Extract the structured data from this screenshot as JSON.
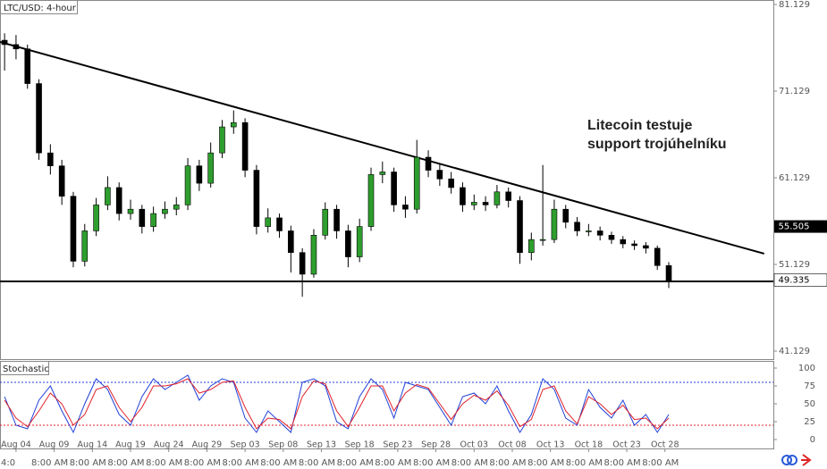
{
  "chart_data": [
    {
      "type": "candlestick",
      "title": "LTC/USD: 4-hour",
      "annotation": [
        "Litecoin testuje",
        "support trojúhelníku"
      ],
      "x": [
        -1.5,
        0,
        1.5,
        3,
        4.5,
        6,
        7.5,
        9,
        10.5,
        12,
        13.5,
        15,
        16.5,
        18,
        19.5,
        21,
        22.5,
        24,
        25.5,
        27,
        28.5,
        30,
        31.5,
        33,
        34.5,
        36,
        37.5,
        39,
        40.5,
        42,
        43.5,
        45,
        46.5,
        48,
        49.5,
        51,
        52.5,
        54,
        55.5,
        57,
        58.5,
        60,
        61.5,
        63,
        64.5,
        66,
        67.5,
        69,
        70.5,
        72,
        73.5,
        75,
        76.5,
        78,
        79.5,
        81,
        82.5,
        84,
        85.5
      ],
      "open": [
        77,
        76.5,
        76,
        72,
        64,
        62.5,
        59,
        51.5,
        55,
        58,
        60,
        57,
        57.5,
        55.5,
        57,
        57.5,
        58,
        62.5,
        60.5,
        64,
        67,
        67.5,
        62,
        55.5,
        56.5,
        55,
        52.5,
        50,
        54.5,
        57.5,
        55,
        52,
        55.5,
        61.5,
        61.8,
        58,
        57.5,
        63.5,
        62,
        61,
        60,
        58,
        58.3,
        58,
        59.5,
        58.5,
        52.5,
        54,
        54,
        57.5,
        56,
        55,
        55,
        54.5,
        54,
        53.5,
        53.3,
        53,
        51
      ],
      "high": [
        77.8,
        77.6,
        76.5,
        72.5,
        65,
        63.2,
        59.5,
        55.8,
        58.8,
        61.3,
        60.6,
        58.6,
        58,
        57.8,
        58.4,
        58.9,
        63.4,
        63.2,
        65.2,
        67.8,
        68.9,
        68,
        62.6,
        57.6,
        57,
        55.6,
        53,
        55.2,
        58.3,
        58,
        55.7,
        56.4,
        62.3,
        63,
        62.3,
        59,
        65.5,
        64.3,
        62.8,
        61.8,
        60.6,
        59.2,
        59,
        60.3,
        60,
        59,
        54.8,
        62.6,
        58.6,
        58,
        56.6,
        55.8,
        55.5,
        54.9,
        54.4,
        53.9,
        53.7,
        53.3,
        51.4
      ],
      "low": [
        73.5,
        74.8,
        71.4,
        63.2,
        61.5,
        58,
        50.8,
        50.9,
        54.4,
        57.4,
        56.2,
        56.3,
        54.7,
        54.9,
        56.4,
        56.8,
        57.4,
        59.6,
        60,
        63.4,
        66.2,
        61.2,
        54.6,
        54.8,
        54.2,
        50.2,
        47.4,
        49.6,
        54,
        54.1,
        50.8,
        51.4,
        55,
        60.5,
        57.2,
        56.5,
        57,
        61.2,
        60.2,
        59.3,
        57.2,
        57.4,
        57.3,
        57.6,
        57.7,
        51.2,
        51.6,
        53.3,
        53.6,
        55.3,
        54.4,
        54.4,
        53.9,
        53.5,
        53,
        52.8,
        52.4,
        50.5,
        48.4
      ],
      "close": [
        76.5,
        76,
        72,
        64,
        62.5,
        59,
        51.5,
        55,
        58,
        60,
        57,
        57.5,
        55.5,
        57,
        57.5,
        58,
        62.5,
        60.5,
        64,
        67,
        67.5,
        62,
        55.5,
        56.5,
        55,
        52.5,
        50,
        54.5,
        57.5,
        55,
        52,
        55.5,
        61.5,
        61.8,
        58,
        57.5,
        63.5,
        62,
        61,
        60,
        58,
        58.3,
        58,
        59.5,
        58.5,
        52.5,
        54,
        54,
        57.5,
        56,
        55,
        55,
        54.5,
        54,
        53.5,
        53.3,
        53,
        51,
        49.3
      ],
      "up_color": "#2e9e2e",
      "down_color": "#000000",
      "trendline": {
        "x": [
          -2.1,
          98
        ],
        "y": [
          76.8,
          52.37
        ]
      },
      "support_level": 49.17,
      "price_tags": [
        55.505,
        49.335
      ],
      "xlim": [
        -2.1,
        99.2
      ],
      "ylim": [
        40.098,
        81.645
      ],
      "yticks": [
        81.129,
        71.129,
        61.129,
        51.129,
        41.129
      ]
    },
    {
      "type": "line",
      "title": "Stochastic",
      "x": [
        -1.5,
        0,
        1.5,
        3,
        4.5,
        6,
        7.5,
        9,
        10.5,
        12,
        13.5,
        15,
        16.5,
        18,
        19.5,
        21,
        22.5,
        24,
        25.5,
        27,
        28.5,
        30,
        31.5,
        33,
        34.5,
        36,
        37.5,
        39,
        40.5,
        42,
        43.5,
        45,
        46.5,
        48,
        49.5,
        51,
        52.5,
        54,
        55.5,
        57,
        58.5,
        60,
        61.5,
        63,
        64.5,
        66,
        67.5,
        69,
        70.5,
        72,
        73.5,
        75,
        76.5,
        78,
        79.5,
        81,
        82.5,
        84,
        85.5
      ],
      "series": [
        {
          "color": "#1f3fd8",
          "values": [
            60,
            20,
            15,
            55,
            75,
            40,
            10,
            50,
            85,
            70,
            35,
            20,
            60,
            85,
            70,
            80,
            90,
            55,
            75,
            85,
            80,
            30,
            10,
            40,
            25,
            10,
            80,
            85,
            75,
            25,
            15,
            60,
            85,
            70,
            30,
            80,
            75,
            70,
            45,
            20,
            60,
            65,
            50,
            75,
            40,
            10,
            35,
            85,
            70,
            30,
            20,
            70,
            45,
            30,
            55,
            20,
            35,
            10,
            35
          ]
        },
        {
          "color": "#e0202a",
          "values": [
            55,
            30,
            18,
            40,
            65,
            50,
            20,
            35,
            70,
            75,
            45,
            25,
            45,
            75,
            75,
            78,
            85,
            65,
            70,
            80,
            82,
            45,
            15,
            30,
            28,
            15,
            60,
            82,
            78,
            40,
            18,
            45,
            75,
            75,
            40,
            65,
            77,
            72,
            50,
            28,
            50,
            62,
            55,
            68,
            48,
            18,
            28,
            70,
            75,
            40,
            22,
            60,
            50,
            35,
            48,
            28,
            30,
            15,
            30
          ]
        }
      ],
      "levels": [
        {
          "value": 80,
          "color": "#1f3fd8"
        },
        {
          "value": 20,
          "color": "#e0202a"
        }
      ],
      "xlim": [
        -2.1,
        99.2
      ],
      "ylim": [
        -12.5,
        108.75
      ],
      "yticks": [
        100,
        75,
        50,
        25,
        0
      ],
      "xticks": [
        {
          "value": 0,
          "label": "Aug 04"
        },
        {
          "value": 5,
          "label": "Aug 09"
        },
        {
          "value": 10,
          "label": "Aug 14"
        },
        {
          "value": 15,
          "label": "Aug 19"
        },
        {
          "value": 20,
          "label": "Aug 24"
        },
        {
          "value": 25,
          "label": "Aug 29"
        },
        {
          "value": 30,
          "label": "Sep 03"
        },
        {
          "value": 35,
          "label": "Sep 08"
        },
        {
          "value": 40,
          "label": "Sep 13"
        },
        {
          "value": 45,
          "label": "Sep 18"
        },
        {
          "value": 50,
          "label": "Sep 23"
        },
        {
          "value": 55,
          "label": "Sep 28"
        },
        {
          "value": 60,
          "label": "Oct 03"
        },
        {
          "value": 65,
          "label": "Oct 08"
        },
        {
          "value": 70,
          "label": "Oct 13"
        },
        {
          "value": 75,
          "label": "Oct 18"
        },
        {
          "value": 80,
          "label": "Oct 23"
        },
        {
          "value": 85,
          "label": "Oct 28"
        }
      ],
      "time_labels": [
        "4:0",
        "8:00 AM",
        "8:00 AM",
        "8:00 AM",
        "8:00 AM",
        "8:00 AM",
        "8:00 AM",
        "8:00 AM",
        "8:00 AM",
        "8:00 AM",
        "8:00 AM",
        "8:00 AM",
        "8:00 AM",
        "8:00 AM",
        "8:00 AM",
        "8:00 AM",
        "8:00 AM",
        "8:00 AM"
      ]
    }
  ]
}
